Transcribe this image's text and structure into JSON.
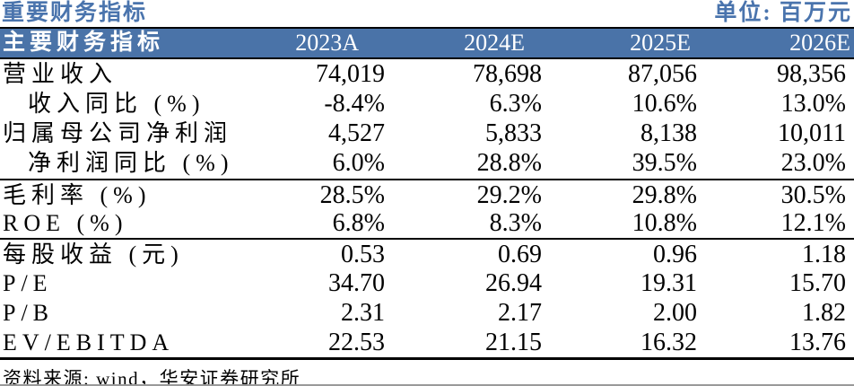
{
  "page": {
    "title": "重要财务指标",
    "unit_label": "单位: 百万元",
    "source": "资料来源: wind，华安证券研究所"
  },
  "table": {
    "header": [
      "主要财务指标",
      "2023A",
      "2024E",
      "2025E",
      "2026E"
    ],
    "rows": [
      {
        "label": "营业收入",
        "indent": false,
        "group_start": false,
        "values": [
          "74,019",
          "78,698",
          "87,056",
          "98,356"
        ]
      },
      {
        "label": "收入同比 (%)",
        "indent": true,
        "group_start": false,
        "values": [
          "-8.4%",
          "6.3%",
          "10.6%",
          "13.0%"
        ]
      },
      {
        "label": "归属母公司净利润",
        "indent": false,
        "group_start": false,
        "values": [
          "4,527",
          "5,833",
          "8,138",
          "10,011"
        ]
      },
      {
        "label": "净利润同比 (%)",
        "indent": true,
        "group_start": false,
        "values": [
          "6.0%",
          "28.8%",
          "39.5%",
          "23.0%"
        ]
      },
      {
        "label": "毛利率 (%)",
        "indent": false,
        "group_start": true,
        "values": [
          "28.5%",
          "29.2%",
          "29.8%",
          "30.5%"
        ]
      },
      {
        "label": "ROE (%)",
        "indent": false,
        "group_start": false,
        "values": [
          "6.8%",
          "8.3%",
          "10.8%",
          "12.1%"
        ]
      },
      {
        "label": "每股收益 (元)",
        "indent": false,
        "group_start": true,
        "values": [
          "0.53",
          "0.69",
          "0.96",
          "1.18"
        ]
      },
      {
        "label": "P/E",
        "indent": false,
        "group_start": false,
        "values": [
          "34.70",
          "26.94",
          "19.31",
          "15.70"
        ]
      },
      {
        "label": "P/B",
        "indent": false,
        "group_start": false,
        "values": [
          "2.31",
          "2.17",
          "2.00",
          "1.82"
        ]
      },
      {
        "label": "EV/EBITDA",
        "indent": false,
        "group_start": false,
        "values": [
          "22.53",
          "21.15",
          "16.32",
          "13.76"
        ]
      }
    ]
  },
  "colors": {
    "accent_blue": "#4a74ad",
    "header_bg": "#4a73a8",
    "border_black": "#000000",
    "hairline_gray": "#999999"
  }
}
